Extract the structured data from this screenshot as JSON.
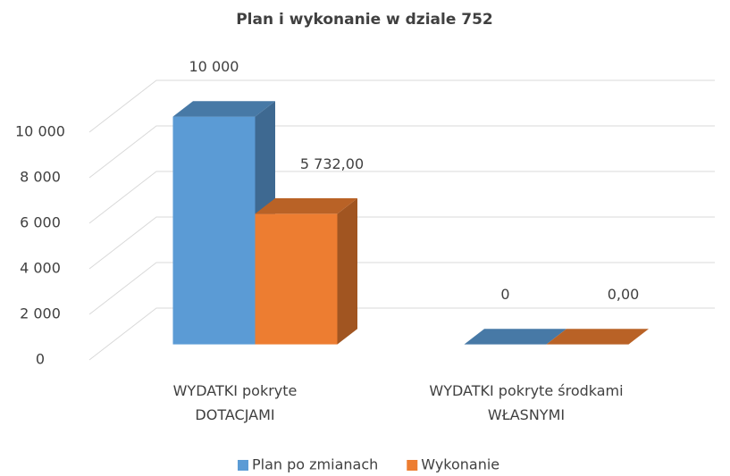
{
  "chart_data": {
    "type": "bar3d",
    "title": "Plan i wykonanie w dziale 752",
    "categories": [
      "WYDATKI pokryte DOTACJAMI",
      "WYDATKI pokryte środkami WŁASNYMI"
    ],
    "series": [
      {
        "name": "Plan po zmianach",
        "color": "#5b9bd5",
        "values": [
          10000,
          0
        ],
        "value_labels": [
          "10 000",
          "0"
        ]
      },
      {
        "name": "Wykonanie",
        "color": "#ed7d31",
        "values": [
          5732,
          0
        ],
        "value_labels": [
          "5 732,00",
          "0,00"
        ]
      }
    ],
    "ylim": [
      0,
      10000
    ],
    "yticks": [
      0,
      {
        "value": 2000,
        "label": "2 000"
      },
      {
        "value": 4000,
        "label": "4 000"
      },
      {
        "value": 6000,
        "label": "6 000"
      },
      {
        "value": 8000,
        "label": "8 000"
      },
      {
        "value": 10000,
        "label": "10 000"
      }
    ],
    "grid": true,
    "legend": "bottom"
  }
}
